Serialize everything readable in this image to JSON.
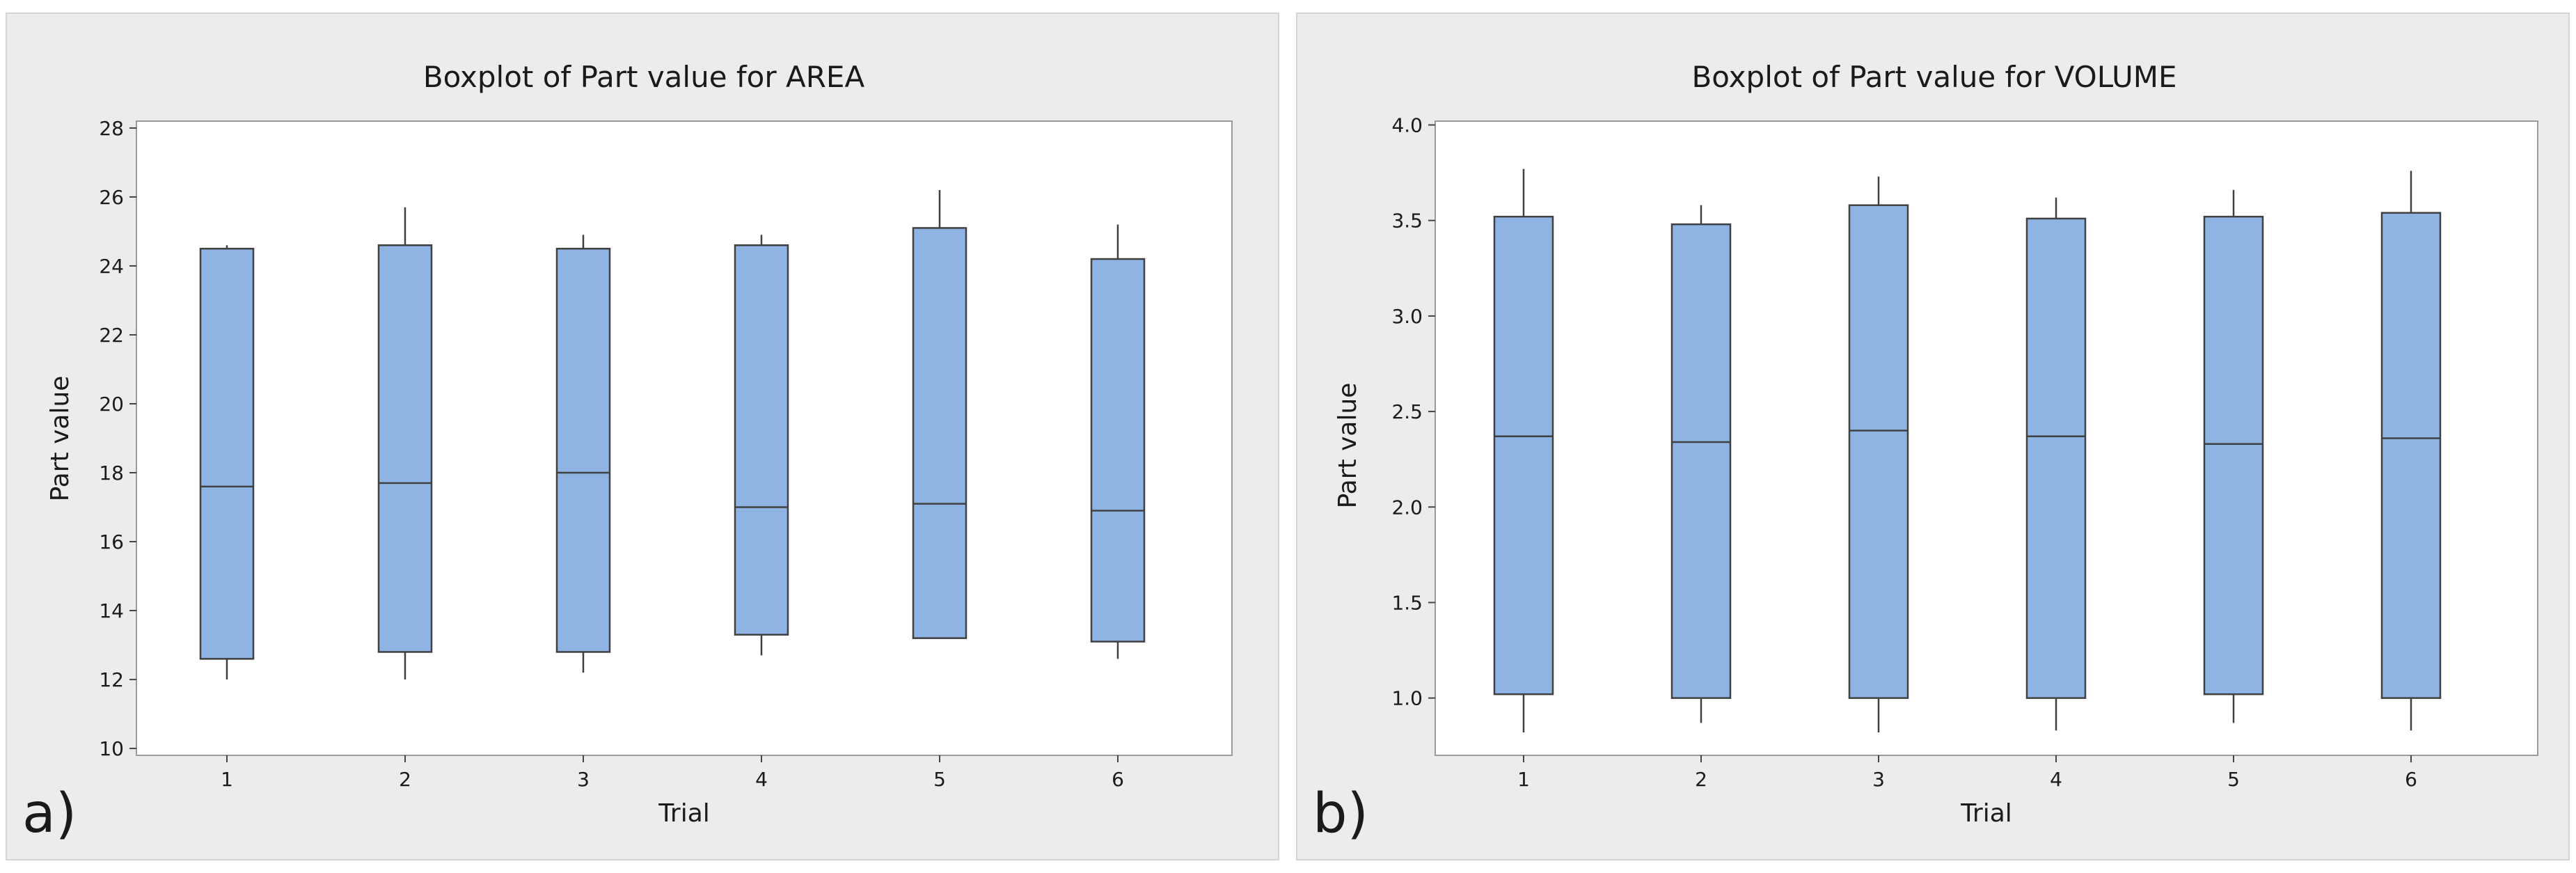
{
  "chart_data": [
    {
      "type": "boxplot",
      "panel_label": "a)",
      "title": "Boxplot of Part value for AREA",
      "xlabel": "Trial",
      "ylabel": "Part value",
      "categories": [
        "1",
        "2",
        "3",
        "4",
        "5",
        "6"
      ],
      "ylim": [
        9.8,
        28.2
      ],
      "yticks": [
        10,
        12,
        14,
        16,
        18,
        20,
        22,
        24,
        26,
        28
      ],
      "ytick_labels": [
        "10",
        "12",
        "14",
        "16",
        "18",
        "20",
        "22",
        "24",
        "26",
        "28"
      ],
      "boxes": [
        {
          "whisker_low": 12.0,
          "q1": 12.6,
          "median": 17.6,
          "q3": 24.5,
          "whisker_high": 24.6
        },
        {
          "whisker_low": 12.0,
          "q1": 12.8,
          "median": 17.7,
          "q3": 24.6,
          "whisker_high": 25.7
        },
        {
          "whisker_low": 12.2,
          "q1": 12.8,
          "median": 18.0,
          "q3": 24.5,
          "whisker_high": 24.9
        },
        {
          "whisker_low": 12.7,
          "q1": 13.3,
          "median": 17.0,
          "q3": 24.6,
          "whisker_high": 24.9
        },
        {
          "whisker_low": 13.2,
          "q1": 13.2,
          "median": 17.1,
          "q3": 25.1,
          "whisker_high": 26.2
        },
        {
          "whisker_low": 12.6,
          "q1": 13.1,
          "median": 16.9,
          "q3": 24.2,
          "whisker_high": 25.2
        }
      ]
    },
    {
      "type": "boxplot",
      "panel_label": "b)",
      "title": "Boxplot of Part value for VOLUME",
      "xlabel": "Trial",
      "ylabel": "Part value",
      "categories": [
        "1",
        "2",
        "3",
        "4",
        "5",
        "6"
      ],
      "ylim": [
        0.7,
        4.02
      ],
      "yticks": [
        1.0,
        1.5,
        2.0,
        2.5,
        3.0,
        3.5,
        4.0
      ],
      "ytick_labels": [
        "1.0",
        "1.5",
        "2.0",
        "2.5",
        "3.0",
        "3.5",
        "4.0"
      ],
      "boxes": [
        {
          "whisker_low": 0.82,
          "q1": 1.02,
          "median": 2.37,
          "q3": 3.52,
          "whisker_high": 3.77
        },
        {
          "whisker_low": 0.87,
          "q1": 1.0,
          "median": 2.34,
          "q3": 3.48,
          "whisker_high": 3.58
        },
        {
          "whisker_low": 0.82,
          "q1": 1.0,
          "median": 2.4,
          "q3": 3.58,
          "whisker_high": 3.73
        },
        {
          "whisker_low": 0.83,
          "q1": 1.0,
          "median": 2.37,
          "q3": 3.51,
          "whisker_high": 3.62
        },
        {
          "whisker_low": 0.87,
          "q1": 1.02,
          "median": 2.33,
          "q3": 3.52,
          "whisker_high": 3.66
        },
        {
          "whisker_low": 0.83,
          "q1": 1.0,
          "median": 2.36,
          "q3": 3.54,
          "whisker_high": 3.76
        }
      ]
    }
  ],
  "colors": {
    "box_fill": "#8fb4e3",
    "box_stroke": "#404040",
    "plot_bg": "#ffffff",
    "panel_bg": "#ececec"
  }
}
